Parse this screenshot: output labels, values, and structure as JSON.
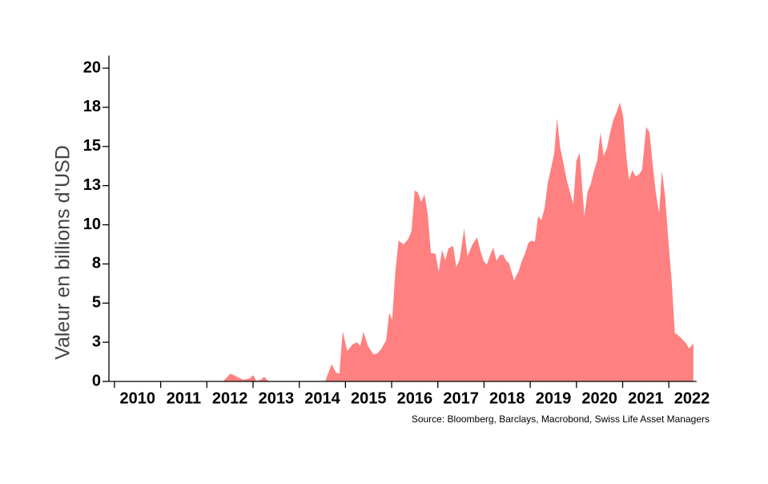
{
  "chart_data": {
    "type": "area",
    "y_label": "Valeur en billions d’USD",
    "source": "Source: Bloomberg, Barclays, Macrobond, Swiss Life Asset Managers",
    "color": "#ff8080",
    "x": [
      2010,
      2012.35,
      2012.51,
      2012.65,
      2012.79,
      2012.93,
      2013.0,
      2013.07,
      2013.17,
      2013.24,
      2013.34,
      2014.45,
      2014.56,
      2014.7,
      2014.8,
      2014.87,
      2014.94,
      2015.04,
      2015.15,
      2015.25,
      2015.32,
      2015.39,
      2015.49,
      2015.6,
      2015.67,
      2015.77,
      2015.88,
      2015.95,
      2016.01,
      2016.08,
      2016.15,
      2016.26,
      2016.36,
      2016.43,
      2016.5,
      2016.57,
      2016.64,
      2016.71,
      2016.78,
      2016.85,
      2016.95,
      2017.02,
      2017.09,
      2017.16,
      2017.23,
      2017.33,
      2017.4,
      2017.47,
      2017.57,
      2017.64,
      2017.75,
      2017.85,
      2017.92,
      2017.99,
      2018.06,
      2018.13,
      2018.2,
      2018.27,
      2018.34,
      2018.41,
      2018.48,
      2018.54,
      2018.65,
      2018.75,
      2018.82,
      2018.89,
      2018.96,
      2019.03,
      2019.1,
      2019.17,
      2019.24,
      2019.31,
      2019.38,
      2019.45,
      2019.52,
      2019.58,
      2019.65,
      2019.72,
      2019.79,
      2019.86,
      2019.93,
      2020.0,
      2020.07,
      2020.14,
      2020.17,
      2020.24,
      2020.31,
      2020.38,
      2020.45,
      2020.52,
      2020.59,
      2020.66,
      2020.73,
      2020.8,
      2020.87,
      2020.94,
      2021.01,
      2021.08,
      2021.14,
      2021.21,
      2021.28,
      2021.35,
      2021.42,
      2021.51,
      2021.58,
      2021.65,
      2021.72,
      2021.79,
      2021.85,
      2021.92,
      2021.99,
      2022.06,
      2022.13,
      2022.24,
      2022.37,
      2022.44,
      2022.53
    ],
    "values": [
      0,
      0,
      0.5,
      0.3,
      0.1,
      0.2,
      0.4,
      0.05,
      0.1,
      0.3,
      0,
      0,
      0,
      1.1,
      0.55,
      0.5,
      3.2,
      1.95,
      2.35,
      2.5,
      2.25,
      3.15,
      2.25,
      1.75,
      1.75,
      2.05,
      2.6,
      4.4,
      3.9,
      7.0,
      9.0,
      8.75,
      9.1,
      9.6,
      12.2,
      12.05,
      11.45,
      11.95,
      10.7,
      8.2,
      8.15,
      7.0,
      8.4,
      7.75,
      8.5,
      8.65,
      7.3,
      7.75,
      9.75,
      8.0,
      8.75,
      9.2,
      8.35,
      7.7,
      7.45,
      8.05,
      8.55,
      7.7,
      8.05,
      8.1,
      7.7,
      7.55,
      6.45,
      7.05,
      7.7,
      8.2,
      8.85,
      9.0,
      8.9,
      10.55,
      10.3,
      11.05,
      12.7,
      13.6,
      14.6,
      16.8,
      14.9,
      13.9,
      12.85,
      12.1,
      11.3,
      14.1,
      14.6,
      11.8,
      10.55,
      12.1,
      12.6,
      13.45,
      14.1,
      15.9,
      14.4,
      14.9,
      15.9,
      16.7,
      17.2,
      17.8,
      16.95,
      14.4,
      12.85,
      13.5,
      13.1,
      13.2,
      13.5,
      16.25,
      15.9,
      13.85,
      12.0,
      10.75,
      13.45,
      11.8,
      9.0,
      6.45,
      3.1,
      2.85,
      2.45,
      2.1,
      2.45
    ],
    "xlim": [
      2009.88,
      2022.6
    ],
    "ylim": [
      0,
      20.8
    ],
    "xticks": [
      2010,
      2011,
      2012,
      2013,
      2014,
      2015,
      2016,
      2017,
      2018,
      2019,
      2020,
      2021,
      2022
    ],
    "yticks": [
      0,
      {
        "value": 2.5,
        "label": "3"
      },
      5,
      {
        "value": 7.5,
        "label": "8"
      },
      10,
      {
        "value": 12.5,
        "label": "13"
      },
      15,
      {
        "value": 17.5,
        "label": "18"
      },
      20
    ]
  }
}
